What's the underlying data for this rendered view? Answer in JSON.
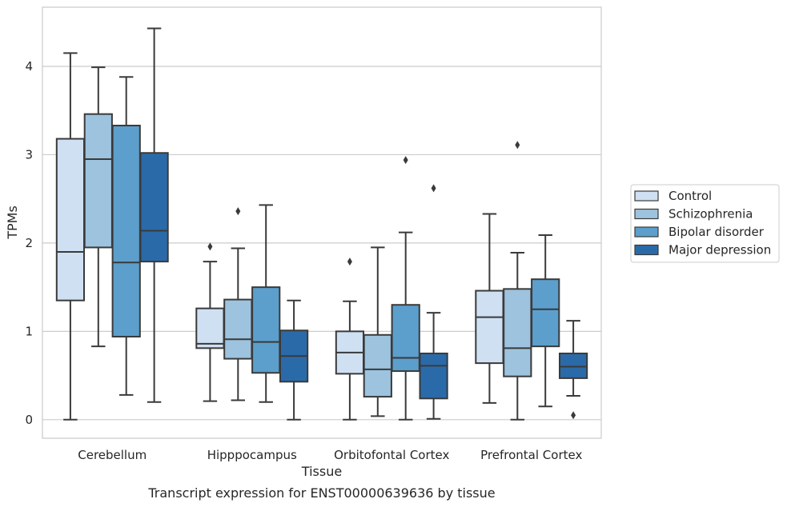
{
  "chart_data": {
    "type": "box",
    "title": "",
    "caption": "Transcript expression for ENST00000639636 by tissue",
    "xlabel": "Tissue",
    "ylabel": "TPMs",
    "ylim": [
      -0.21,
      4.67
    ],
    "yticks": [
      "0",
      "1",
      "2",
      "3",
      "4"
    ],
    "grid": "horizontal",
    "legend_position": "right",
    "categories": [
      "Cerebellum",
      "Hipppocampus",
      "Orbitofontal Cortex",
      "Prefrontal Cortex"
    ],
    "series": [
      {
        "name": "Control",
        "color": "#cfe0f2",
        "boxes": [
          {
            "whislo": 0.0,
            "q1": 1.35,
            "med": 1.9,
            "q3": 3.18,
            "whishi": 4.15,
            "fliers": []
          },
          {
            "whislo": 0.21,
            "q1": 0.81,
            "med": 0.86,
            "q3": 1.26,
            "whishi": 1.79,
            "fliers": [
              1.96
            ]
          },
          {
            "whislo": 0.0,
            "q1": 0.52,
            "med": 0.76,
            "q3": 1.0,
            "whishi": 1.34,
            "fliers": [
              1.79
            ]
          },
          {
            "whislo": 0.19,
            "q1": 0.64,
            "med": 1.16,
            "q3": 1.46,
            "whishi": 2.33,
            "fliers": []
          }
        ]
      },
      {
        "name": "Schizophrenia",
        "color": "#9dc3de",
        "boxes": [
          {
            "whislo": 0.83,
            "q1": 1.95,
            "med": 2.95,
            "q3": 3.46,
            "whishi": 3.99,
            "fliers": []
          },
          {
            "whislo": 0.22,
            "q1": 0.69,
            "med": 0.91,
            "q3": 1.36,
            "whishi": 1.94,
            "fliers": [
              2.36
            ]
          },
          {
            "whislo": 0.04,
            "q1": 0.26,
            "med": 0.57,
            "q3": 0.96,
            "whishi": 1.95,
            "fliers": []
          },
          {
            "whislo": 0.0,
            "q1": 0.49,
            "med": 0.81,
            "q3": 1.48,
            "whishi": 1.89,
            "fliers": [
              3.11
            ]
          }
        ]
      },
      {
        "name": "Bipolar disorder",
        "color": "#5c9fcc",
        "boxes": [
          {
            "whislo": 0.28,
            "q1": 0.94,
            "med": 1.78,
            "q3": 3.33,
            "whishi": 3.88,
            "fliers": []
          },
          {
            "whislo": 0.2,
            "q1": 0.53,
            "med": 0.88,
            "q3": 1.5,
            "whishi": 2.43,
            "fliers": []
          },
          {
            "whislo": 0.0,
            "q1": 0.55,
            "med": 0.7,
            "q3": 1.3,
            "whishi": 2.12,
            "fliers": [
              2.94
            ]
          },
          {
            "whislo": 0.15,
            "q1": 0.83,
            "med": 1.25,
            "q3": 1.59,
            "whishi": 2.09,
            "fliers": []
          }
        ]
      },
      {
        "name": "Major depression",
        "color": "#2b6aa8",
        "boxes": [
          {
            "whislo": 0.2,
            "q1": 1.79,
            "med": 2.14,
            "q3": 3.02,
            "whishi": 4.43,
            "fliers": []
          },
          {
            "whislo": 0.0,
            "q1": 0.43,
            "med": 0.72,
            "q3": 1.01,
            "whishi": 1.35,
            "fliers": []
          },
          {
            "whislo": 0.01,
            "q1": 0.24,
            "med": 0.61,
            "q3": 0.75,
            "whishi": 1.21,
            "fliers": [
              2.62
            ]
          },
          {
            "whislo": 0.27,
            "q1": 0.47,
            "med": 0.6,
            "q3": 0.75,
            "whishi": 1.12,
            "fliers": [
              0.05
            ]
          }
        ]
      }
    ]
  }
}
